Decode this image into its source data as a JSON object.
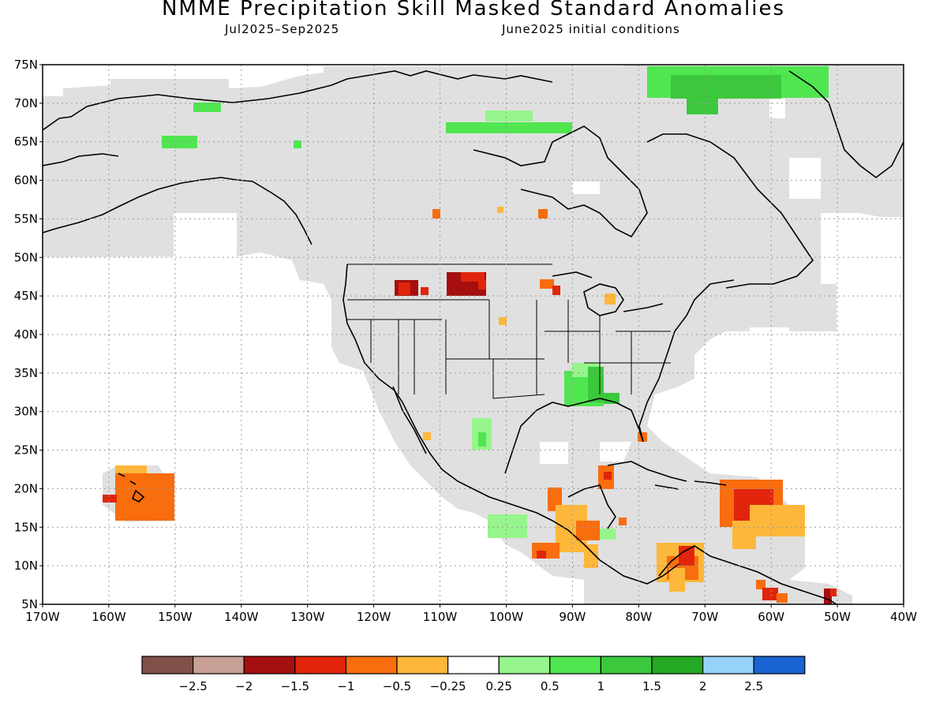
{
  "title": "NMME Precipitation Skill Masked Standard Anomalies",
  "subtitle_left": "Jul2025–Sep2025",
  "subtitle_right": "June2025 initial conditions",
  "map": {
    "lon_range": [
      -170,
      -40
    ],
    "lat_range": [
      5,
      75
    ],
    "lat_ticks": [
      "75N",
      "70N",
      "65N",
      "60N",
      "55N",
      "50N",
      "45N",
      "40N",
      "35N",
      "30N",
      "25N",
      "20N",
      "15N",
      "10N",
      "5N"
    ],
    "lon_ticks": [
      "170W",
      "160W",
      "150W",
      "140W",
      "130W",
      "120W",
      "110W",
      "100W",
      "90W",
      "80W",
      "70W",
      "60W",
      "50W",
      "40W"
    ],
    "grid": true,
    "masked_color": "#e0e0e0",
    "coastline_color": "#000000"
  },
  "legend": {
    "colors": [
      "#7f5148",
      "#c8a096",
      "#a50f0f",
      "#e1250c",
      "#f86d0d",
      "#fdb73a",
      "#ffffff",
      "#96f58c",
      "#50e650",
      "#3cc83c",
      "#24a924",
      "#96d2fa",
      "#1964d2"
    ],
    "labels": [
      "−2.5",
      "−2",
      "−1.5",
      "−1",
      "−0.5",
      "−0.25",
      "0.25",
      "0.5",
      "1",
      "1.5",
      "2",
      "2.5"
    ]
  }
}
